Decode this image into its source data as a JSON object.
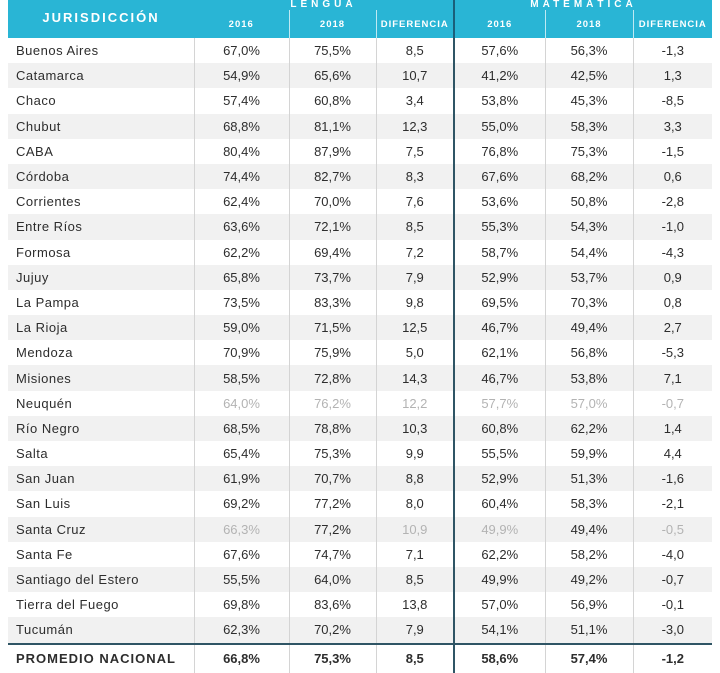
{
  "header": {
    "jurisdiction": "JURISDICCIÓN",
    "group_lengua": "LENGUA",
    "group_matematica": "MATEMÁTICA",
    "col_2016": "2016",
    "col_2018": "2018",
    "col_diff": "DIFERENCIA"
  },
  "rows": [
    {
      "name": "Buenos Aires",
      "l16": "67,0%",
      "l18": "75,5%",
      "ld": "8,5",
      "m16": "57,6%",
      "m18": "56,3%",
      "md": "-1,3"
    },
    {
      "name": "Catamarca",
      "l16": "54,9%",
      "l18": "65,6%",
      "ld": "10,7",
      "m16": "41,2%",
      "m18": "42,5%",
      "md": "1,3"
    },
    {
      "name": "Chaco",
      "l16": "57,4%",
      "l18": "60,8%",
      "ld": "3,4",
      "m16": "53,8%",
      "m18": "45,3%",
      "md": "-8,5"
    },
    {
      "name": "Chubut",
      "l16": "68,8%",
      "l18": "81,1%",
      "ld": "12,3",
      "m16": "55,0%",
      "m18": "58,3%",
      "md": "3,3"
    },
    {
      "name": "CABA",
      "l16": "80,4%",
      "l18": "87,9%",
      "ld": "7,5",
      "m16": "76,8%",
      "m18": "75,3%",
      "md": "-1,5"
    },
    {
      "name": "Córdoba",
      "l16": "74,4%",
      "l18": "82,7%",
      "ld": "8,3",
      "m16": "67,6%",
      "m18": "68,2%",
      "md": "0,6"
    },
    {
      "name": "Corrientes",
      "l16": "62,4%",
      "l18": "70,0%",
      "ld": "7,6",
      "m16": "53,6%",
      "m18": "50,8%",
      "md": "-2,8"
    },
    {
      "name": "Entre Ríos",
      "l16": "63,6%",
      "l18": "72,1%",
      "ld": "8,5",
      "m16": "55,3%",
      "m18": "54,3%",
      "md": "-1,0"
    },
    {
      "name": "Formosa",
      "l16": "62,2%",
      "l18": "69,4%",
      "ld": "7,2",
      "m16": "58,7%",
      "m18": "54,4%",
      "md": "-4,3"
    },
    {
      "name": "Jujuy",
      "l16": "65,8%",
      "l18": "73,7%",
      "ld": "7,9",
      "m16": "52,9%",
      "m18": "53,7%",
      "md": "0,9"
    },
    {
      "name": "La Pampa",
      "l16": "73,5%",
      "l18": "83,3%",
      "ld": "9,8",
      "m16": "69,5%",
      "m18": "70,3%",
      "md": "0,8"
    },
    {
      "name": "La Rioja",
      "l16": "59,0%",
      "l18": "71,5%",
      "ld": "12,5",
      "m16": "46,7%",
      "m18": "49,4%",
      "md": "2,7"
    },
    {
      "name": "Mendoza",
      "l16": "70,9%",
      "l18": "75,9%",
      "ld": "5,0",
      "m16": "62,1%",
      "m18": "56,8%",
      "md": "-5,3"
    },
    {
      "name": "Misiones",
      "l16": "58,5%",
      "l18": "72,8%",
      "ld": "14,3",
      "m16": "46,7%",
      "m18": "53,8%",
      "md": "7,1"
    },
    {
      "name": "Neuquén",
      "l16": "64,0%",
      "l18": "76,2%",
      "ld": "12,2",
      "m16": "57,7%",
      "m18": "57,0%",
      "md": "-0,7"
    },
    {
      "name": "Río Negro",
      "l16": "68,5%",
      "l18": "78,8%",
      "ld": "10,3",
      "m16": "60,8%",
      "m18": "62,2%",
      "md": "1,4"
    },
    {
      "name": "Salta",
      "l16": "65,4%",
      "l18": "75,3%",
      "ld": "9,9",
      "m16": "55,5%",
      "m18": "59,9%",
      "md": "4,4"
    },
    {
      "name": "San Juan",
      "l16": "61,9%",
      "l18": "70,7%",
      "ld": "8,8",
      "m16": "52,9%",
      "m18": "51,3%",
      "md": "-1,6"
    },
    {
      "name": "San Luis",
      "l16": "69,2%",
      "l18": "77,2%",
      "ld": "8,0",
      "m16": "60,4%",
      "m18": "58,3%",
      "md": "-2,1"
    },
    {
      "name": "Santa Cruz",
      "l16": "66,3%",
      "l18": "77,2%",
      "ld": "10,9",
      "m16": "49,9%",
      "m18": "49,4%",
      "md": "-0,5"
    },
    {
      "name": "Santa Fe",
      "l16": "67,6%",
      "l18": "74,7%",
      "ld": "7,1",
      "m16": "62,2%",
      "m18": "58,2%",
      "md": "-4,0"
    },
    {
      "name": "Santiago del Estero",
      "l16": "55,5%",
      "l18": "64,0%",
      "ld": "8,5",
      "m16": "49,9%",
      "m18": "49,2%",
      "md": "-0,7"
    },
    {
      "name": "Tierra del Fuego",
      "l16": "69,8%",
      "l18": "83,6%",
      "ld": "13,8",
      "m16": "57,0%",
      "m18": "56,9%",
      "md": "-0,1"
    },
    {
      "name": "Tucumán",
      "l16": "62,3%",
      "l18": "70,2%",
      "ld": "7,9",
      "m16": "54,1%",
      "m18": "51,1%",
      "md": "-3,0"
    }
  ],
  "average": {
    "name": "PROMEDIO NACIONAL",
    "l16": "66,8%",
    "l18": "75,3%",
    "ld": "8,5",
    "m16": "58,6%",
    "m18": "57,4%",
    "md": "-1,2"
  },
  "colors": {
    "header_bg": "#29b5d5",
    "stripe": "#f1f1f1",
    "faded_text": "#b3b3b3"
  }
}
